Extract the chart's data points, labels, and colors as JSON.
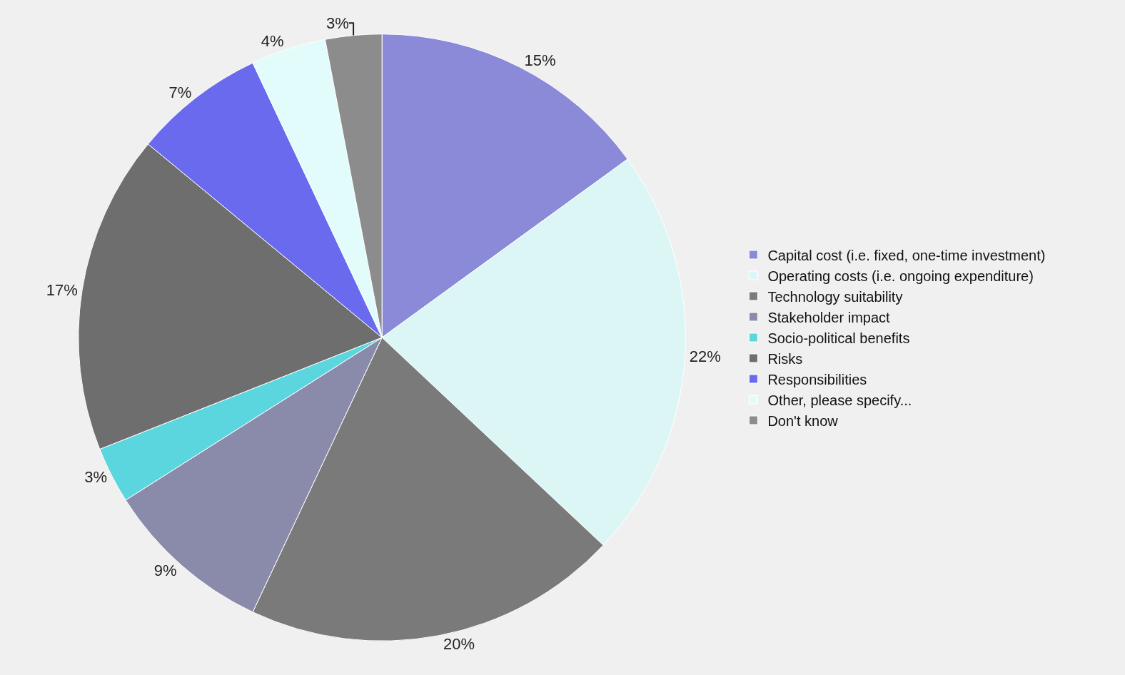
{
  "chart_data": {
    "type": "pie",
    "categories": [
      "Capital cost (i.e. fixed, one-time investment)",
      "Operating costs (i.e. ongoing expenditure)",
      "Technology suitability",
      "Stakeholder impact",
      "Socio-political benefits",
      "Risks",
      "Responsibilities",
      "Other, please specify...",
      "Don't know"
    ],
    "values": [
      15,
      22,
      20,
      9,
      3,
      17,
      7,
      4,
      3
    ],
    "value_labels": [
      "15%",
      "22%",
      "20%",
      "9%",
      "3%",
      "17%",
      "7%",
      "4%",
      "3%"
    ],
    "colors": [
      "#8a8ad8",
      "#dcf6f6",
      "#7a7a7a",
      "#8a8aaa",
      "#5cd6de",
      "#6e6e6e",
      "#6a6aee",
      "#e2fcfc",
      "#8c8c8c"
    ],
    "legend": "right"
  }
}
